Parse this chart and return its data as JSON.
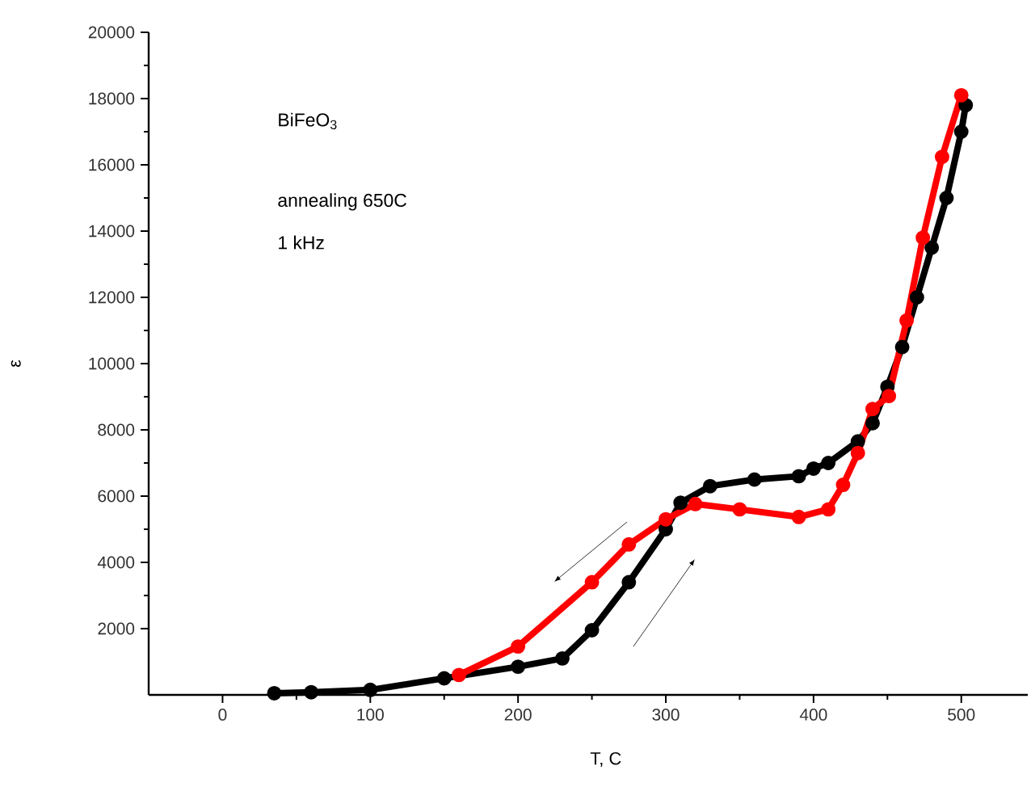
{
  "chart_data": {
    "type": "line",
    "xlabel": "T, C",
    "ylabel": "ε",
    "annotations": [
      "BiFeO$_{3}$",
      "annealing 650C",
      "1 kHz"
    ],
    "xlim": [
      -50,
      545
    ],
    "xticks": [
      0,
      100,
      200,
      300,
      400,
      500
    ],
    "ylim": [
      0,
      20000
    ],
    "yticks": [
      2000,
      4000,
      6000,
      8000,
      10000,
      12000,
      14000,
      16000,
      18000,
      20000
    ],
    "marker": "circle",
    "grid": false,
    "series": [
      {
        "color": "#000000",
        "x": [
          35,
          60,
          100,
          150,
          200,
          230,
          250,
          275,
          300,
          310,
          330,
          360,
          390,
          400,
          410,
          430,
          440,
          450,
          460,
          470,
          480,
          490,
          500,
          503
        ],
        "values": [
          50,
          80,
          150,
          500,
          850,
          1100,
          1950,
          3400,
          5000,
          5800,
          6300,
          6500,
          6600,
          6830,
          7000,
          7650,
          8200,
          9300,
          10500,
          12000,
          13500,
          15000,
          17000,
          17800
        ]
      },
      {
        "color": "#ff0000",
        "x": [
          160,
          200,
          250,
          275,
          300,
          320,
          350,
          390,
          410,
          420,
          430,
          440,
          451,
          463,
          474,
          487,
          500
        ],
        "values": [
          600,
          1460,
          3400,
          4540,
          5300,
          5760,
          5600,
          5370,
          5600,
          6340,
          7300,
          8630,
          9020,
          11300,
          13800,
          16240,
          18100
        ]
      }
    ]
  }
}
